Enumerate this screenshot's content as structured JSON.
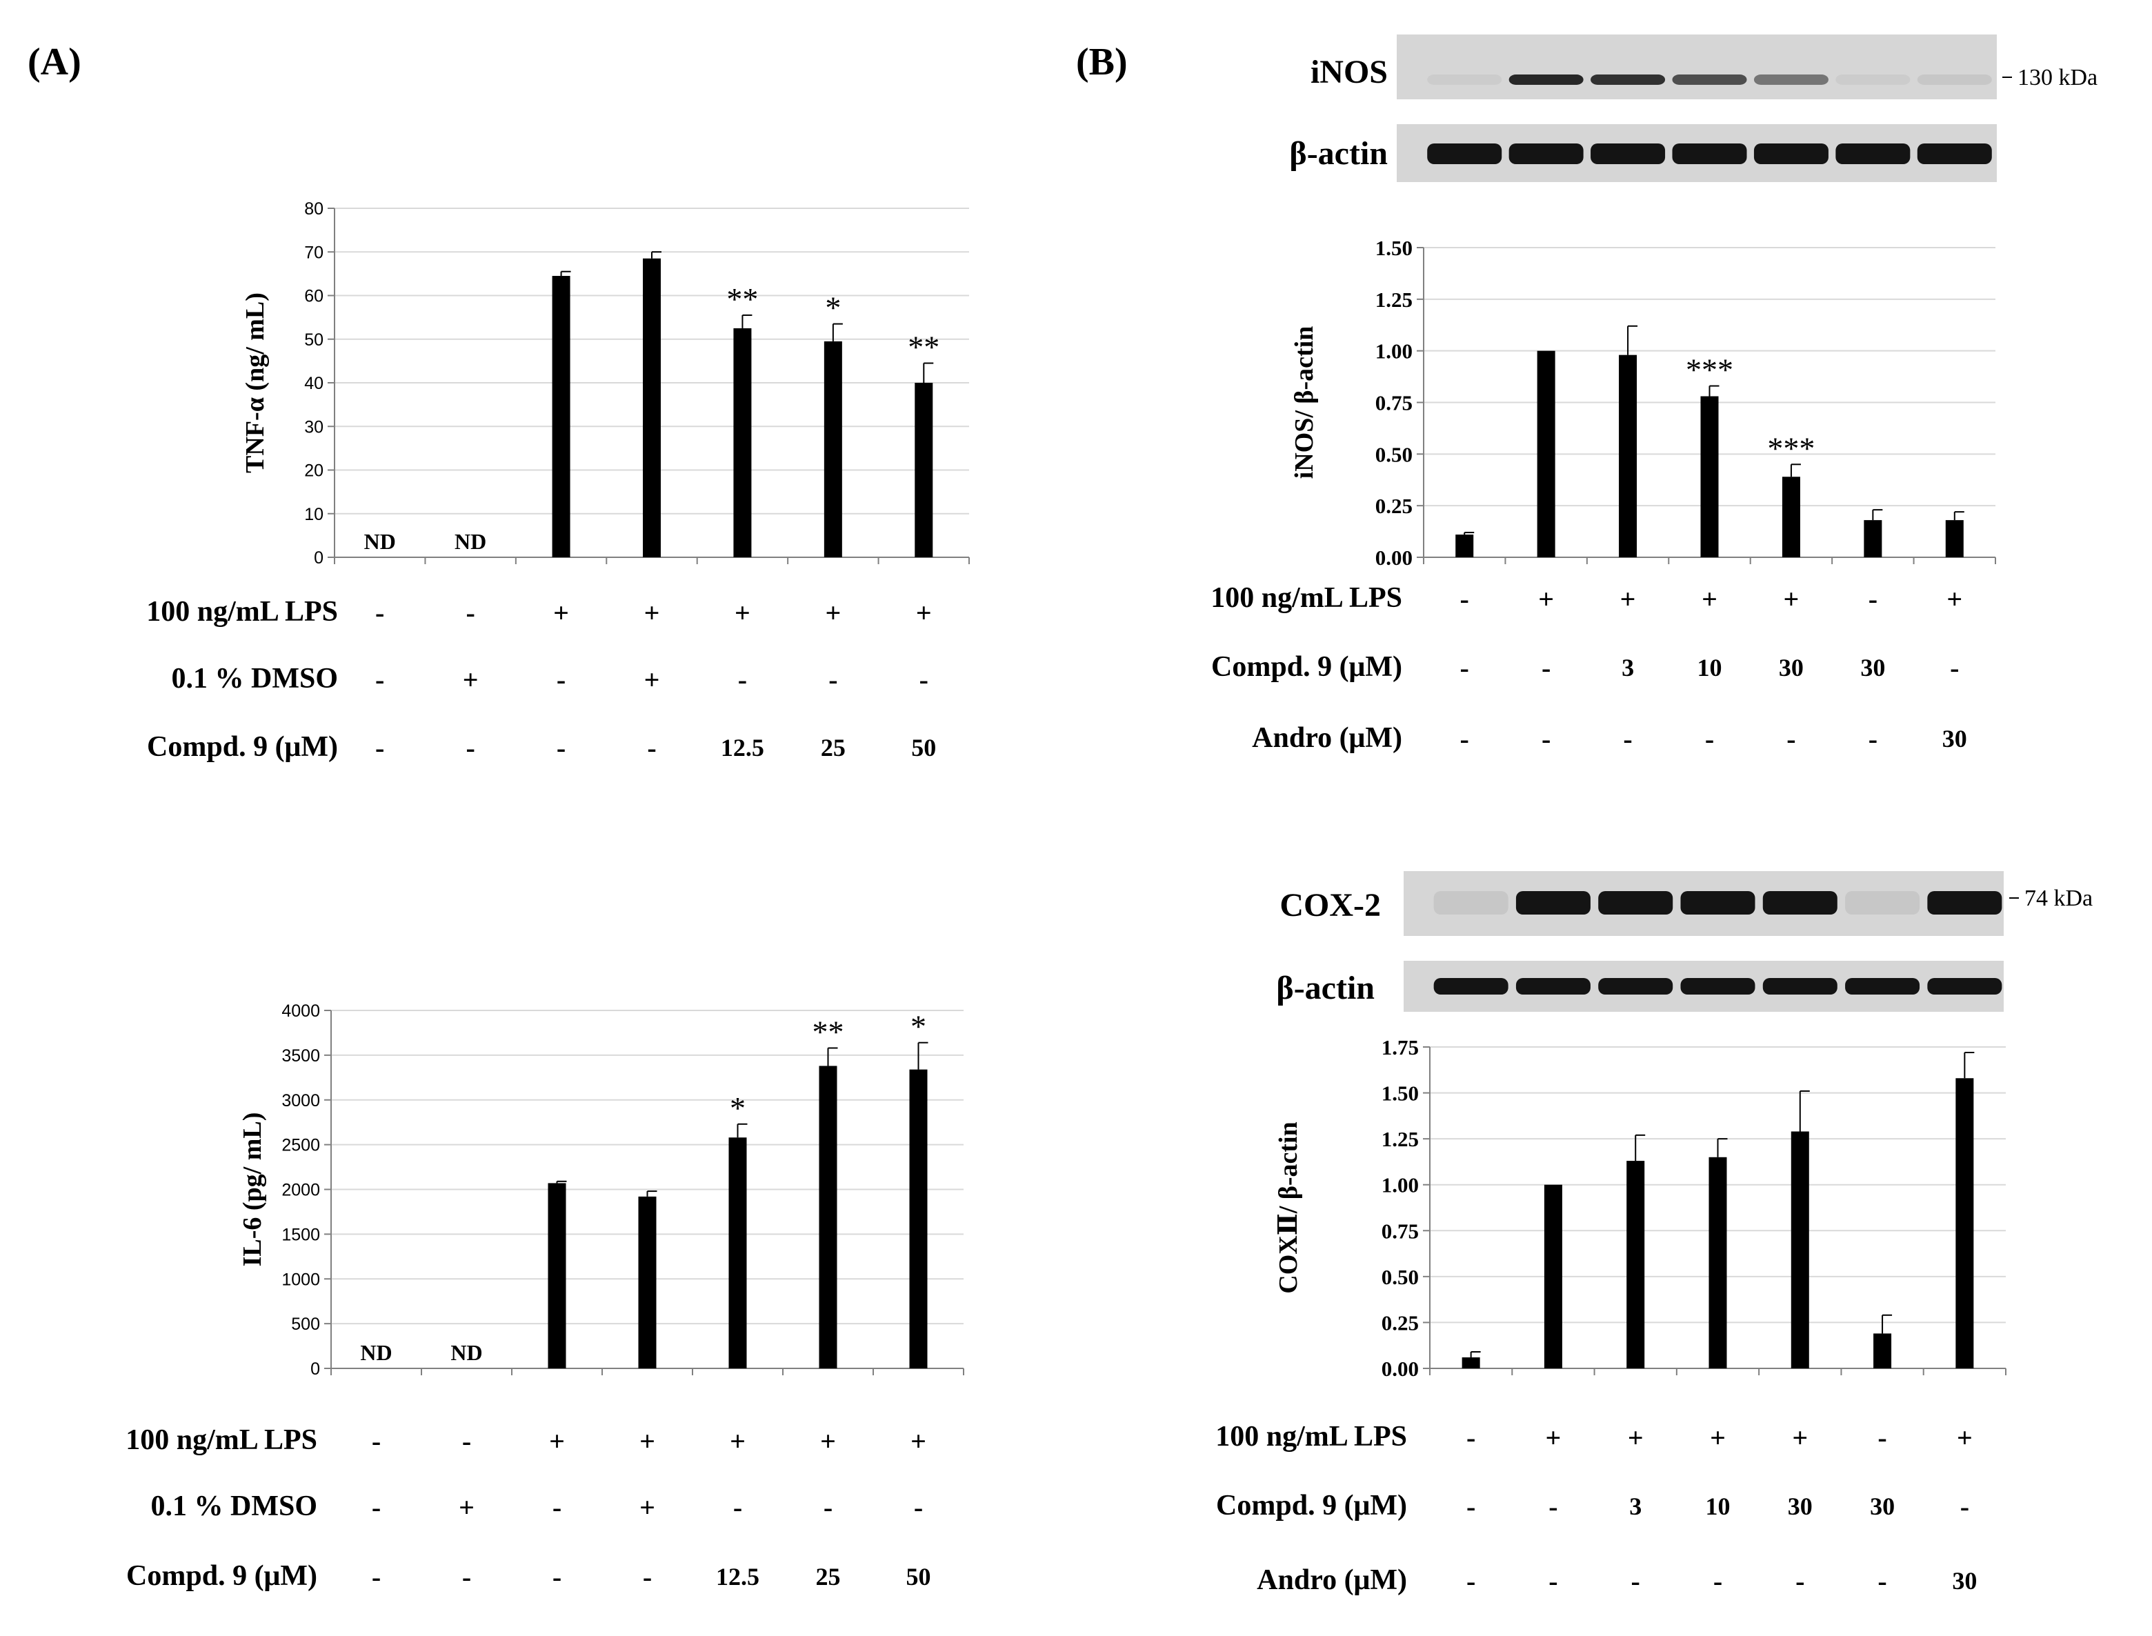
{
  "panel_a_label": "(A)",
  "panel_b_label": "(B)",
  "chart_data": [
    {
      "id": "tnf",
      "type": "bar",
      "title": "",
      "ylabel": "TNF-α (ng/ mL)",
      "ylim": [
        0,
        80
      ],
      "yticks": [
        0,
        10,
        20,
        30,
        40,
        50,
        60,
        70,
        80
      ],
      "ytick_decimals": 0,
      "values": [
        0,
        0,
        64.5,
        68.5,
        52.5,
        49.5,
        40
      ],
      "errors": [
        0,
        0,
        1,
        1.5,
        3,
        4,
        4.5
      ],
      "annotations": [
        "ND",
        "ND",
        "",
        "",
        "**",
        "*",
        "**"
      ],
      "conditions": [
        {
          "label": "100 ng/mL LPS",
          "values": [
            "-",
            "-",
            "+",
            "+",
            "+",
            "+",
            "+"
          ]
        },
        {
          "label": "0.1 % DMSO",
          "values": [
            "-",
            "+",
            "-",
            "+",
            "-",
            "-",
            "-"
          ]
        },
        {
          "label": "Compd. 9 (μM)",
          "values": [
            "-",
            "-",
            "-",
            "-",
            "12.5",
            "25",
            "50"
          ]
        }
      ]
    },
    {
      "id": "il6",
      "type": "bar",
      "title": "",
      "ylabel": "IL-6 (pg/ mL)",
      "ylim": [
        0,
        4000
      ],
      "yticks": [
        0,
        500,
        1000,
        1500,
        2000,
        2500,
        3000,
        3500,
        4000
      ],
      "ytick_decimals": 0,
      "values": [
        0,
        0,
        2070,
        1920,
        2580,
        3380,
        3340
      ],
      "errors": [
        0,
        0,
        20,
        60,
        150,
        200,
        300
      ],
      "annotations": [
        "ND",
        "ND",
        "",
        "",
        "*",
        "**",
        "*"
      ],
      "conditions": [
        {
          "label": "100 ng/mL LPS",
          "values": [
            "-",
            "-",
            "+",
            "+",
            "+",
            "+",
            "+"
          ]
        },
        {
          "label": "0.1 % DMSO",
          "values": [
            "-",
            "+",
            "-",
            "+",
            "-",
            "-",
            "-"
          ]
        },
        {
          "label": "Compd. 9 (μM)",
          "values": [
            "-",
            "-",
            "-",
            "-",
            "12.5",
            "25",
            "50"
          ]
        }
      ]
    },
    {
      "id": "inos",
      "type": "bar",
      "title": "",
      "ylabel": "iNOS/ β-actin",
      "ylim": [
        0,
        1.5
      ],
      "yticks": [
        0,
        0.25,
        0.5,
        0.75,
        1.0,
        1.25,
        1.5
      ],
      "ytick_decimals": 2,
      "values": [
        0.11,
        1.0,
        0.98,
        0.78,
        0.39,
        0.18,
        0.18
      ],
      "errors": [
        0.01,
        0.0,
        0.14,
        0.05,
        0.06,
        0.05,
        0.04
      ],
      "annotations": [
        "",
        "",
        "",
        "***",
        "***",
        "",
        ""
      ],
      "conditions": [
        {
          "label": "100 ng/mL LPS",
          "values": [
            "-",
            "+",
            "+",
            "+",
            "+",
            "-",
            "+"
          ]
        },
        {
          "label": "Compd. 9 (μM)",
          "values": [
            "-",
            "-",
            "3",
            "10",
            "30",
            "30",
            "-"
          ]
        },
        {
          "label": "Andro (μM)",
          "values": [
            "-",
            "-",
            "-",
            "-",
            "-",
            "-",
            "30"
          ]
        }
      ]
    },
    {
      "id": "cox",
      "type": "bar",
      "title": "",
      "ylabel": "COXⅡ/ β-actin",
      "ylim": [
        0,
        1.75
      ],
      "yticks": [
        0,
        0.25,
        0.5,
        0.75,
        1.0,
        1.25,
        1.5,
        1.75
      ],
      "ytick_decimals": 2,
      "values": [
        0.06,
        1.0,
        1.13,
        1.15,
        1.29,
        0.19,
        1.58
      ],
      "errors": [
        0.03,
        0.0,
        0.14,
        0.1,
        0.22,
        0.1,
        0.14
      ],
      "annotations": [
        "",
        "",
        "",
        "",
        "",
        "",
        ""
      ],
      "conditions": [
        {
          "label": "100 ng/mL LPS",
          "values": [
            "-",
            "+",
            "+",
            "+",
            "+",
            "-",
            "+"
          ]
        },
        {
          "label": "Compd. 9 (μM)",
          "values": [
            "-",
            "-",
            "3",
            "10",
            "30",
            "30",
            "-"
          ]
        },
        {
          "label": "Andro (μM)",
          "values": [
            "-",
            "-",
            "-",
            "-",
            "-",
            "-",
            "30"
          ]
        }
      ]
    }
  ],
  "blots": {
    "inos": {
      "label": "iNOS",
      "kda": "130 kDa",
      "intensity": [
        0.0,
        0.9,
        0.85,
        0.7,
        0.5,
        0.05,
        0.08
      ]
    },
    "inos_actin": {
      "label": "β-actin",
      "kda": "",
      "intensity": [
        1,
        1,
        1,
        1,
        1,
        1,
        1
      ]
    },
    "cox": {
      "label": "COX-2",
      "kda": "74 kDa",
      "intensity": [
        0.08,
        1,
        1,
        1,
        1,
        0.08,
        1
      ]
    },
    "cox_actin": {
      "label": "β-actin",
      "kda": "",
      "intensity": [
        1,
        1,
        1,
        1,
        1,
        1,
        1
      ]
    }
  },
  "colors": {
    "bar": "#000000",
    "grid": "#d9d9d9",
    "axis": "#808080",
    "blot_bg": "#d6d6d6",
    "band": "#141414"
  }
}
